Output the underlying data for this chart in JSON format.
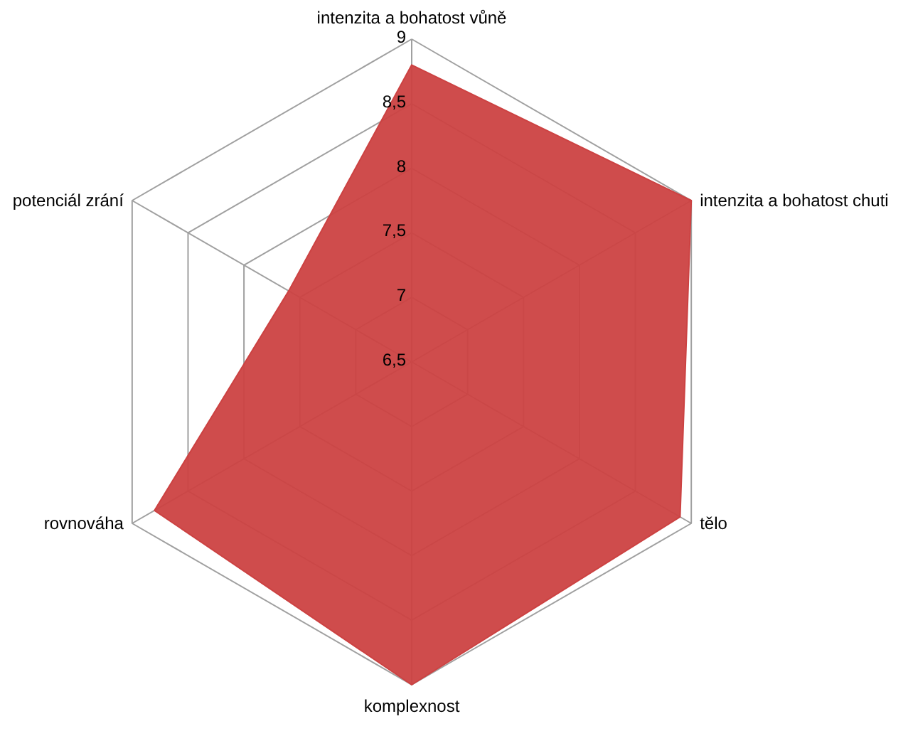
{
  "chart_data": {
    "type": "radar",
    "categories": [
      "intenzita a bohatost vůně",
      "intenzita a bohatost chuti",
      "tělo",
      "komplexnost",
      "rovnováha",
      "potenciál zrání"
    ],
    "series": [
      {
        "color": "#cc4242",
        "values": [
          8.8,
          9,
          8.9,
          9,
          8.8,
          7.6
        ]
      }
    ],
    "ylim": [
      6.5,
      9
    ],
    "yticks": [
      {
        "value": 6.5,
        "label": "6,5"
      },
      7,
      {
        "value": 7.5,
        "label": "7,5"
      },
      8,
      {
        "value": 8.5,
        "label": "8,5"
      },
      9
    ]
  }
}
